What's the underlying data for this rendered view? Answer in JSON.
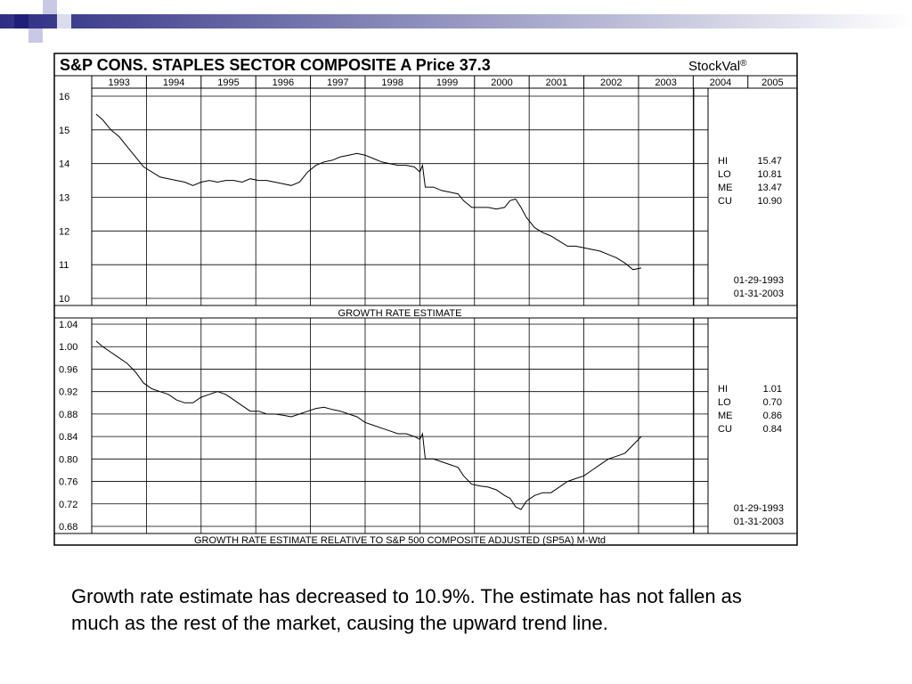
{
  "title": "S&P CONS. STAPLES SECTOR COMPOSITE A  Price  37.3",
  "brand": "StockVal",
  "brand_mark": "®",
  "caption": "Growth rate estimate has decreased to 10.9%.  The estimate has not fallen as much as the rest of the market, causing the upward trend line.",
  "colors": {
    "header_bar_start": "#2e2e84",
    "header_bar_end": "#ffffff",
    "square_dark": "#1f1f7a",
    "square_light": "#c9c9e6",
    "line": "#000000"
  },
  "chart_data": [
    {
      "type": "line",
      "years": [
        "1993",
        "1994",
        "1995",
        "1996",
        "1997",
        "1998",
        "1999",
        "2000",
        "2001",
        "2002",
        "2003",
        "2004",
        "2005"
      ],
      "y_ticks": [
        "16",
        "15",
        "14",
        "13",
        "12",
        "11",
        "10"
      ],
      "ylim": [
        10,
        16
      ],
      "xlim": [
        1993,
        2005.9
      ],
      "grid": true,
      "stats": [
        {
          "label": "HI",
          "value": "15.47"
        },
        {
          "label": "LO",
          "value": "10.81"
        },
        {
          "label": "ME",
          "value": "13.47"
        },
        {
          "label": "CU",
          "value": "10.90"
        }
      ],
      "date_start": "01-29-1993",
      "date_end": "01-31-2003",
      "footer_label": "GROWTH RATE ESTIMATE",
      "series": [
        {
          "points": [
            [
              1993.08,
              15.47
            ],
            [
              1993.2,
              15.3
            ],
            [
              1993.35,
              15.0
            ],
            [
              1993.5,
              14.8
            ],
            [
              1993.65,
              14.5
            ],
            [
              1993.8,
              14.2
            ],
            [
              1993.95,
              13.9
            ],
            [
              1994.1,
              13.75
            ],
            [
              1994.25,
              13.6
            ],
            [
              1994.4,
              13.55
            ],
            [
              1994.55,
              13.5
            ],
            [
              1994.7,
              13.45
            ],
            [
              1994.85,
              13.35
            ],
            [
              1995.0,
              13.45
            ],
            [
              1995.15,
              13.5
            ],
            [
              1995.3,
              13.45
            ],
            [
              1995.45,
              13.5
            ],
            [
              1995.6,
              13.5
            ],
            [
              1995.75,
              13.45
            ],
            [
              1995.9,
              13.55
            ],
            [
              1996.05,
              13.5
            ],
            [
              1996.2,
              13.5
            ],
            [
              1996.35,
              13.45
            ],
            [
              1996.5,
              13.4
            ],
            [
              1996.65,
              13.35
            ],
            [
              1996.8,
              13.45
            ],
            [
              1996.95,
              13.75
            ],
            [
              1997.1,
              13.95
            ],
            [
              1997.25,
              14.05
            ],
            [
              1997.4,
              14.1
            ],
            [
              1997.55,
              14.2
            ],
            [
              1997.7,
              14.25
            ],
            [
              1997.85,
              14.3
            ],
            [
              1998.0,
              14.25
            ],
            [
              1998.15,
              14.15
            ],
            [
              1998.3,
              14.05
            ],
            [
              1998.45,
              14.0
            ],
            [
              1998.6,
              13.95
            ],
            [
              1998.75,
              13.95
            ],
            [
              1998.9,
              13.9
            ],
            [
              1999.0,
              13.75
            ],
            [
              1999.05,
              13.95
            ],
            [
              1999.1,
              13.3
            ],
            [
              1999.25,
              13.3
            ],
            [
              1999.4,
              13.2
            ],
            [
              1999.55,
              13.15
            ],
            [
              1999.7,
              13.1
            ],
            [
              1999.8,
              12.9
            ],
            [
              1999.95,
              12.7
            ],
            [
              2000.1,
              12.7
            ],
            [
              2000.25,
              12.7
            ],
            [
              2000.4,
              12.65
            ],
            [
              2000.55,
              12.7
            ],
            [
              2000.65,
              12.9
            ],
            [
              2000.75,
              12.95
            ],
            [
              2000.85,
              12.7
            ],
            [
              2000.95,
              12.4
            ],
            [
              2001.1,
              12.1
            ],
            [
              2001.25,
              11.95
            ],
            [
              2001.4,
              11.85
            ],
            [
              2001.55,
              11.7
            ],
            [
              2001.7,
              11.55
            ],
            [
              2001.85,
              11.55
            ],
            [
              2002.0,
              11.5
            ],
            [
              2002.15,
              11.45
            ],
            [
              2002.3,
              11.4
            ],
            [
              2002.45,
              11.3
            ],
            [
              2002.6,
              11.2
            ],
            [
              2002.75,
              11.05
            ],
            [
              2002.9,
              10.85
            ],
            [
              2003.05,
              10.9
            ]
          ]
        }
      ]
    },
    {
      "type": "line",
      "years": [
        "1993",
        "1994",
        "1995",
        "1996",
        "1997",
        "1998",
        "1999",
        "2000",
        "2001",
        "2002",
        "2003",
        "2004",
        "2005"
      ],
      "y_ticks": [
        "1.04",
        "1.00",
        "0.96",
        "0.92",
        "0.88",
        "0.84",
        "0.80",
        "0.76",
        "0.72",
        "0.68"
      ],
      "ylim": [
        0.68,
        1.04
      ],
      "xlim": [
        1993,
        2005.9
      ],
      "grid": true,
      "stats": [
        {
          "label": "HI",
          "value": "1.01"
        },
        {
          "label": "LO",
          "value": "0.70"
        },
        {
          "label": "ME",
          "value": "0.86"
        },
        {
          "label": "CU",
          "value": "0.84"
        }
      ],
      "date_start": "01-29-1993",
      "date_end": "01-31-2003",
      "footer_label": "GROWTH RATE ESTIMATE RELATIVE TO S&P 500 COMPOSITE ADJUSTED (SP5A) M-Wtd",
      "series": [
        {
          "points": [
            [
              1993.08,
              1.01
            ],
            [
              1993.2,
              1.0
            ],
            [
              1993.35,
              0.99
            ],
            [
              1993.5,
              0.98
            ],
            [
              1993.65,
              0.97
            ],
            [
              1993.8,
              0.955
            ],
            [
              1993.95,
              0.935
            ],
            [
              1994.1,
              0.925
            ],
            [
              1994.25,
              0.92
            ],
            [
              1994.4,
              0.915
            ],
            [
              1994.55,
              0.905
            ],
            [
              1994.7,
              0.9
            ],
            [
              1994.85,
              0.9
            ],
            [
              1995.0,
              0.91
            ],
            [
              1995.15,
              0.915
            ],
            [
              1995.3,
              0.92
            ],
            [
              1995.45,
              0.915
            ],
            [
              1995.6,
              0.905
            ],
            [
              1995.75,
              0.895
            ],
            [
              1995.9,
              0.885
            ],
            [
              1996.05,
              0.885
            ],
            [
              1996.2,
              0.88
            ],
            [
              1996.35,
              0.88
            ],
            [
              1996.5,
              0.878
            ],
            [
              1996.65,
              0.875
            ],
            [
              1996.8,
              0.88
            ],
            [
              1996.95,
              0.885
            ],
            [
              1997.1,
              0.89
            ],
            [
              1997.25,
              0.892
            ],
            [
              1997.4,
              0.888
            ],
            [
              1997.55,
              0.885
            ],
            [
              1997.7,
              0.88
            ],
            [
              1997.85,
              0.875
            ],
            [
              1998.0,
              0.865
            ],
            [
              1998.15,
              0.86
            ],
            [
              1998.3,
              0.855
            ],
            [
              1998.45,
              0.85
            ],
            [
              1998.6,
              0.845
            ],
            [
              1998.75,
              0.845
            ],
            [
              1998.9,
              0.84
            ],
            [
              1999.0,
              0.835
            ],
            [
              1999.05,
              0.845
            ],
            [
              1999.1,
              0.8
            ],
            [
              1999.25,
              0.8
            ],
            [
              1999.4,
              0.795
            ],
            [
              1999.55,
              0.79
            ],
            [
              1999.7,
              0.785
            ],
            [
              1999.8,
              0.77
            ],
            [
              1999.95,
              0.755
            ],
            [
              2000.1,
              0.752
            ],
            [
              2000.25,
              0.75
            ],
            [
              2000.4,
              0.745
            ],
            [
              2000.55,
              0.735
            ],
            [
              2000.65,
              0.73
            ],
            [
              2000.75,
              0.715
            ],
            [
              2000.85,
              0.71
            ],
            [
              2000.95,
              0.725
            ],
            [
              2001.1,
              0.735
            ],
            [
              2001.25,
              0.74
            ],
            [
              2001.4,
              0.74
            ],
            [
              2001.55,
              0.75
            ],
            [
              2001.7,
              0.76
            ],
            [
              2001.85,
              0.765
            ],
            [
              2002.0,
              0.77
            ],
            [
              2002.15,
              0.78
            ],
            [
              2002.3,
              0.79
            ],
            [
              2002.45,
              0.8
            ],
            [
              2002.6,
              0.805
            ],
            [
              2002.75,
              0.81
            ],
            [
              2002.9,
              0.825
            ],
            [
              2003.05,
              0.84
            ]
          ]
        }
      ]
    }
  ]
}
